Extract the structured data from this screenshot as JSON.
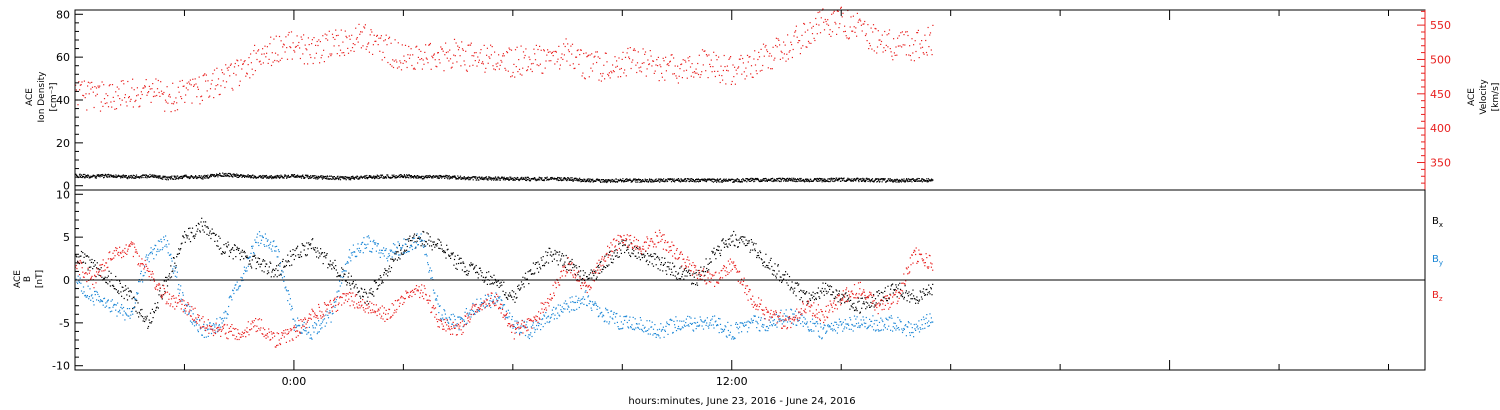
{
  "colors": {
    "axis": "#000000",
    "velocity": "#e8201f",
    "bx": "#000000",
    "by": "#1a86d6",
    "bz": "#e8201f"
  },
  "chart_data": [
    {
      "type": "scatter",
      "ylabel_lines": [
        "ACE",
        "Ion Density",
        "[cm⁻³]"
      ],
      "ylim": [
        -2,
        82
      ],
      "yticks": [
        "0",
        "20",
        "40",
        "60",
        "80"
      ],
      "y2label_lines": [
        "ACE",
        "Velocity",
        "[km/s]"
      ],
      "y2lim": [
        310,
        572
      ],
      "y2ticks": [
        "350",
        "400",
        "450",
        "500",
        "550"
      ],
      "xlim_hours": [
        -6,
        31
      ],
      "series": [
        {
          "axis": "left",
          "color": "#000000",
          "marker": "dot",
          "x": [
            -6,
            -5.5,
            -5,
            -4.5,
            -4,
            -3.5,
            -3,
            -2.5,
            -2,
            -1.5,
            -1,
            -0.5,
            0,
            0.5,
            1,
            1.5,
            2,
            2.5,
            3,
            3.5,
            4,
            4.5,
            5,
            5.5,
            6,
            6.5,
            7,
            7.5,
            8,
            8.5,
            9,
            9.5,
            10,
            10.5,
            11,
            11.5,
            12,
            12.5,
            13,
            13.5,
            14,
            14.5,
            15,
            15.5,
            16,
            16.5,
            17,
            17.5
          ],
          "y": [
            5,
            4.5,
            5,
            4.3,
            4.8,
            3.8,
            4.5,
            4.2,
            5.5,
            4.8,
            4.5,
            4.3,
            4.8,
            4.2,
            4,
            3.8,
            4.3,
            4.5,
            4.8,
            4.2,
            4.5,
            4,
            3.7,
            3.6,
            3.5,
            3.4,
            3.5,
            3.3,
            2.8,
            2.5,
            2.8,
            2.6,
            2.7,
            2.9,
            2.8,
            2.7,
            2.6,
            3,
            2.9,
            3.1,
            2.8,
            2.9,
            3.1,
            3,
            2.8,
            2.7,
            2.9,
            2.7
          ]
        },
        {
          "axis": "right",
          "color": "#e8201f",
          "marker": "dot",
          "scatter": true,
          "x": [
            -6,
            -5.5,
            -5,
            -4.5,
            -4,
            -3.5,
            -3,
            -2.5,
            -2,
            -1.5,
            -1,
            -0.5,
            0,
            0.5,
            1,
            1.5,
            2,
            2.5,
            3,
            3.5,
            4,
            4.5,
            5,
            5.5,
            6,
            6.5,
            7,
            7.5,
            8,
            8.5,
            9,
            9.5,
            10,
            10.5,
            11,
            11.5,
            12,
            12.5,
            13,
            13.5,
            14,
            14.5,
            15,
            15.5,
            16,
            16.5,
            17,
            17.5
          ],
          "y": [
            450,
            445,
            448,
            450,
            455,
            445,
            450,
            460,
            470,
            480,
            505,
            515,
            520,
            510,
            525,
            530,
            535,
            515,
            505,
            500,
            505,
            510,
            500,
            505,
            495,
            505,
            500,
            510,
            490,
            490,
            495,
            500,
            490,
            485,
            495,
            490,
            485,
            495,
            505,
            520,
            535,
            555,
            555,
            545,
            525,
            520,
            520,
            530
          ]
        }
      ]
    },
    {
      "type": "scatter",
      "ylabel_lines": [
        "ACE",
        "B",
        "[nT]"
      ],
      "ylim": [
        -10.5,
        10.5
      ],
      "yticks": [
        "-10",
        "-5",
        "0",
        "5",
        "10"
      ],
      "xlim_hours": [
        -6,
        31
      ],
      "xticks": [
        "0:00",
        "12:00"
      ],
      "xlabel": "hours:minutes, June 23, 2016 - June 24, 2016",
      "zero_line": true,
      "series": [
        {
          "name": "Bx",
          "label_main": "B",
          "label_sub": "x",
          "color": "#000000",
          "x": [
            -6,
            -5.5,
            -5,
            -4.5,
            -4,
            -3.5,
            -3,
            -2.5,
            -2,
            -1.5,
            -1,
            -0.5,
            0,
            0.5,
            1,
            1.5,
            2,
            2.5,
            3,
            3.5,
            4,
            4.5,
            5,
            5.5,
            6,
            6.5,
            7,
            7.5,
            8,
            8.5,
            9,
            9.5,
            10,
            10.5,
            11,
            11.5,
            12,
            12.5,
            13,
            13.5,
            14,
            14.5,
            15,
            15.5,
            16,
            16.5,
            17,
            17.5
          ],
          "y": [
            3,
            1.5,
            0,
            -2,
            -5,
            0,
            5,
            6.5,
            4,
            3,
            2,
            1,
            3,
            4,
            2,
            0,
            -2,
            1,
            4,
            5,
            4,
            2,
            1,
            0,
            -2,
            1,
            3,
            2,
            0,
            2,
            4,
            3,
            2,
            1,
            0,
            3,
            5,
            4,
            2,
            0,
            -2,
            -1,
            -2,
            -3,
            -2,
            -1,
            -2,
            -1
          ]
        },
        {
          "name": "By",
          "label_main": "B",
          "label_sub": "y",
          "color": "#1a86d6",
          "x": [
            -6,
            -5.5,
            -5,
            -4.5,
            -4,
            -3.5,
            -3,
            -2.5,
            -2,
            -1.5,
            -1,
            -0.5,
            0,
            0.5,
            1,
            1.5,
            2,
            2.5,
            3,
            3.5,
            4,
            4.5,
            5,
            5.5,
            6,
            6.5,
            7,
            7.5,
            8,
            8.5,
            9,
            9.5,
            10,
            10.5,
            11,
            11.5,
            12,
            12.5,
            13,
            13.5,
            14,
            14.5,
            15,
            15.5,
            16,
            16.5,
            17,
            17.5
          ],
          "y": [
            0,
            -2,
            -3,
            -4,
            3,
            4.5,
            -3,
            -6,
            -5,
            0,
            5,
            4,
            -5,
            -6,
            -4,
            3,
            4.5,
            3,
            4,
            5,
            -4,
            -5,
            -3,
            -2,
            -5,
            -6,
            -4,
            -3,
            -2,
            -4,
            -5,
            -5,
            -6,
            -5,
            -5,
            -5,
            -6,
            -5,
            -5,
            -4,
            -5,
            -6,
            -5,
            -5,
            -5,
            -5,
            -6,
            -4
          ]
        },
        {
          "name": "Bz",
          "label_main": "B",
          "label_sub": "z",
          "color": "#e8201f",
          "x": [
            -6,
            -5.5,
            -5,
            -4.5,
            -4,
            -3.5,
            -3,
            -2.5,
            -2,
            -1.5,
            -1,
            -0.5,
            0,
            0.5,
            1,
            1.5,
            2,
            2.5,
            3,
            3.5,
            4,
            4.5,
            5,
            5.5,
            6,
            6.5,
            7,
            7.5,
            8,
            8.5,
            9,
            9.5,
            10,
            10.5,
            11,
            11.5,
            12,
            12.5,
            13,
            13.5,
            14,
            14.5,
            15,
            15.5,
            16,
            16.5,
            17,
            17.5
          ],
          "y": [
            2,
            0,
            3,
            4,
            1,
            -2,
            -3,
            -5,
            -6,
            -6,
            -5,
            -7,
            -6,
            -4,
            -3,
            -2,
            -3,
            -4,
            -2,
            -1,
            -5,
            -6,
            -3,
            -2,
            -6,
            -5,
            -2,
            2,
            -1,
            3,
            5,
            4,
            5,
            3,
            1,
            0,
            2,
            -2,
            -4,
            -5,
            -3,
            -4,
            -2,
            -1,
            -3,
            -2,
            3,
            2
          ]
        }
      ]
    }
  ]
}
